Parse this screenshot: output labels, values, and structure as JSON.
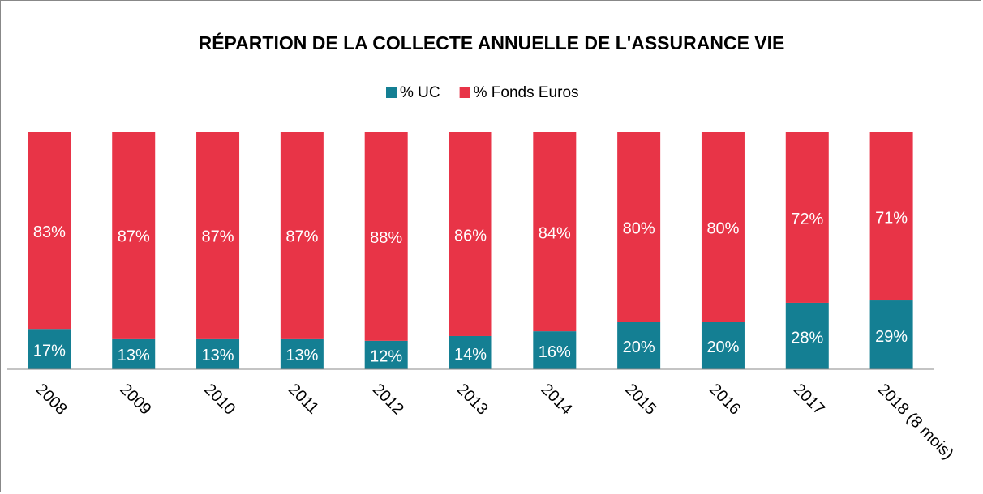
{
  "chart_data": {
    "type": "stacked-bar",
    "title": "RÉPARTION DE LA COLLECTE ANNUELLE DE L'ASSURANCE VIE",
    "categories": [
      "2008",
      "2009",
      "2010",
      "2011",
      "2012",
      "2013",
      "2014",
      "2015",
      "2016",
      "2017",
      "2018 (8 mois)"
    ],
    "series": [
      {
        "name": "% UC",
        "color": "#147f93",
        "values": [
          17,
          13,
          13,
          13,
          12,
          14,
          16,
          20,
          20,
          28,
          29
        ],
        "value_labels": [
          "17%",
          "13%",
          "13%",
          "13%",
          "12%",
          "14%",
          "16%",
          "20%",
          "20%",
          "28%",
          "29%"
        ]
      },
      {
        "name": "% Fonds Euros",
        "color": "#e83447",
        "values": [
          83,
          87,
          87,
          87,
          88,
          86,
          84,
          80,
          80,
          72,
          71
        ],
        "value_labels": [
          "83%",
          "87%",
          "87%",
          "87%",
          "88%",
          "86%",
          "84%",
          "80%",
          "80%",
          "72%",
          "71%"
        ]
      }
    ],
    "legend": "top"
  }
}
